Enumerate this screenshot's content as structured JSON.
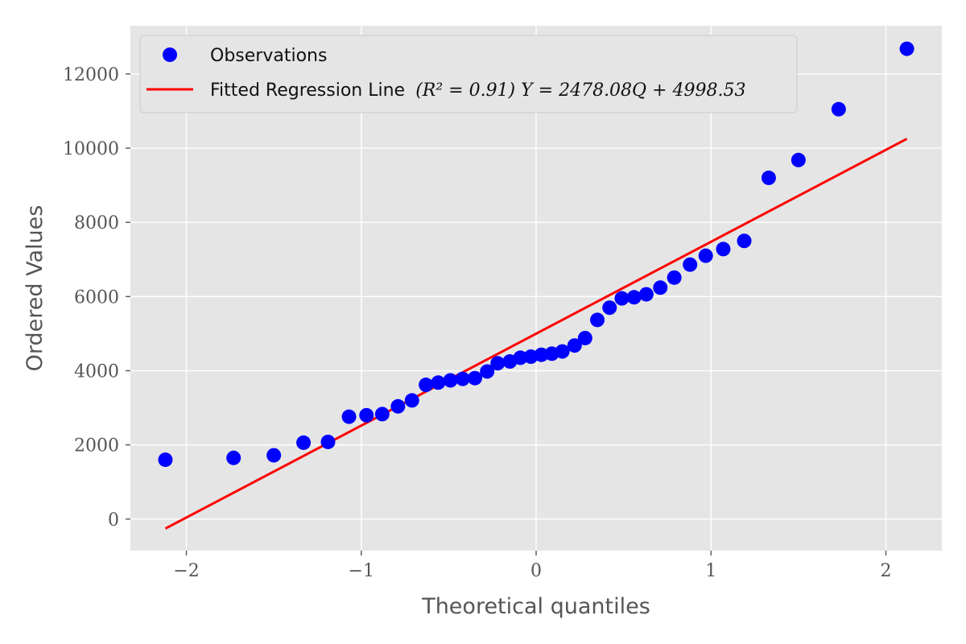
{
  "chart_data": {
    "type": "scatter",
    "title": "",
    "xlabel": "Theoretical quantiles",
    "ylabel": "Ordered Values",
    "xlim": [
      -2.32,
      2.32
    ],
    "ylim": [
      -850,
      13300
    ],
    "x_ticks": [
      -2,
      -1,
      0,
      1,
      2
    ],
    "x_tick_labels": [
      "−2",
      "−1",
      "0",
      "1",
      "2"
    ],
    "y_ticks": [
      0,
      2000,
      4000,
      6000,
      8000,
      10000,
      12000
    ],
    "y_tick_labels": [
      "0",
      "2000",
      "4000",
      "6000",
      "8000",
      "10000",
      "12000"
    ],
    "grid": true,
    "legend_placement": "top-left",
    "colors": {
      "observations": "#0000ff",
      "fit_line": "#ff0000",
      "plot_background": "#e5e5e5",
      "grid": "#ffffff"
    },
    "series": [
      {
        "name": "Observations",
        "kind": "scatter",
        "x": [
          -2.12,
          -1.73,
          -1.5,
          -1.33,
          -1.19,
          -1.07,
          -0.97,
          -0.88,
          -0.79,
          -0.71,
          -0.63,
          -0.56,
          -0.49,
          -0.42,
          -0.35,
          -0.28,
          -0.22,
          -0.15,
          -0.09,
          -0.03,
          0.03,
          0.09,
          0.15,
          0.22,
          0.28,
          0.35,
          0.42,
          0.49,
          0.56,
          0.63,
          0.71,
          0.79,
          0.88,
          0.97,
          1.07,
          1.19,
          1.33,
          1.5,
          1.73,
          2.12
        ],
        "y": [
          1600,
          1650,
          1720,
          2060,
          2080,
          2760,
          2800,
          2830,
          3040,
          3200,
          3620,
          3680,
          3740,
          3780,
          3800,
          3980,
          4200,
          4250,
          4350,
          4380,
          4430,
          4460,
          4520,
          4680,
          4880,
          5370,
          5700,
          5950,
          5980,
          6060,
          6240,
          6510,
          6860,
          7100,
          7280,
          7500,
          9200,
          9680,
          11050,
          12680
        ]
      },
      {
        "name": "Fitted Regression Line",
        "kind": "line",
        "slope": 2478.08,
        "intercept": 4998.53,
        "x_range": [
          -2.12,
          2.12
        ]
      }
    ],
    "legend": [
      {
        "label": "Observations",
        "math": ""
      },
      {
        "label": "Fitted Regression Line",
        "math": "(R² = 0.91) Y = 2478.08Q + 4998.53"
      }
    ]
  }
}
